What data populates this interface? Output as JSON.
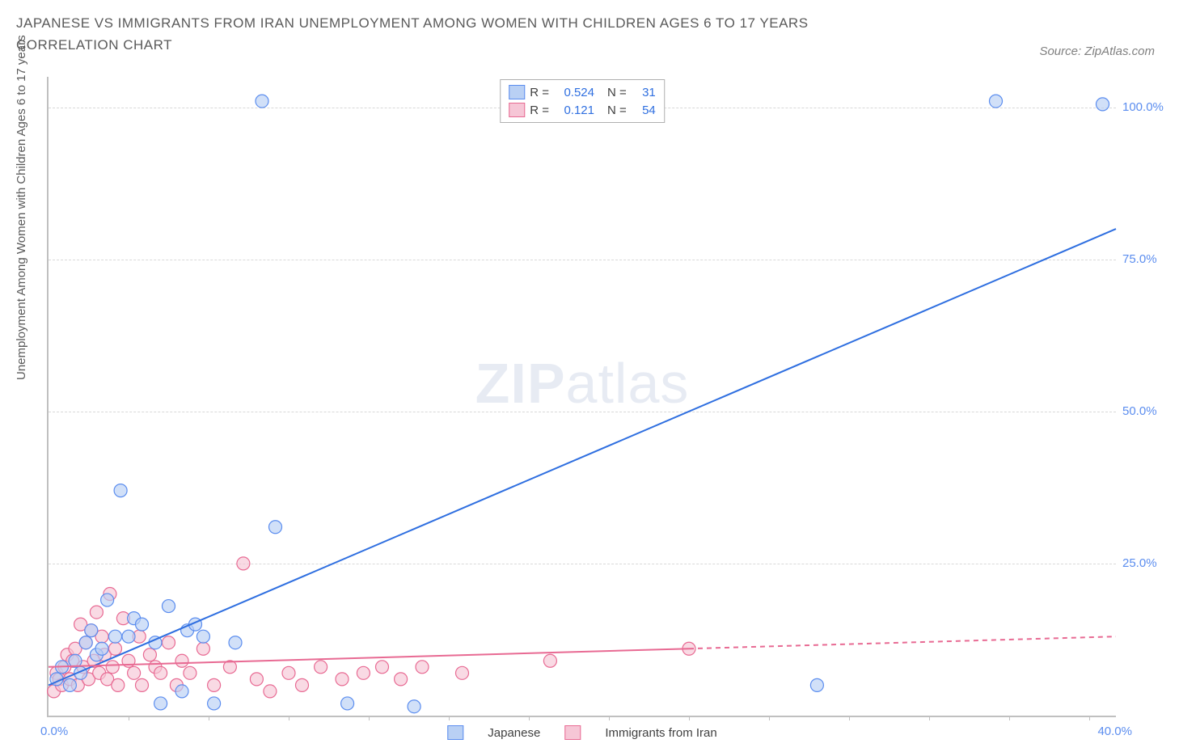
{
  "title": "JAPANESE VS IMMIGRANTS FROM IRAN UNEMPLOYMENT AMONG WOMEN WITH CHILDREN AGES 6 TO 17 YEARS CORRELATION CHART",
  "source": "Source: ZipAtlas.com",
  "ylabel": "Unemployment Among Women with Children Ages 6 to 17 years",
  "watermark_a": "ZIP",
  "watermark_b": "atlas",
  "chart": {
    "type": "scatter-with-regression",
    "xlim": [
      0,
      40
    ],
    "ylim": [
      0,
      105
    ],
    "x_tick_positions": [
      3,
      6,
      9,
      12,
      15,
      18,
      21,
      24,
      27,
      30,
      33,
      36,
      39
    ],
    "x_label_min": "0.0%",
    "x_label_max": "40.0%",
    "y_gridlines": [
      25,
      50,
      75,
      100
    ],
    "y_labels": [
      "25.0%",
      "50.0%",
      "75.0%",
      "100.0%"
    ],
    "grid_color": "#d8d8d8",
    "axis_color": "#c0c0c0",
    "ytick_color": "#5b8def",
    "marker_radius": 8,
    "marker_stroke_width": 1.2,
    "line_width": 2,
    "series": [
      {
        "name": "Japanese",
        "color_fill": "#b9d0f4",
        "color_stroke": "#5b8def",
        "line_color": "#2f6fe0",
        "R": "0.524",
        "N": "31",
        "regression": {
          "x1": 0,
          "y1": 5,
          "x2": 40,
          "y2": 80,
          "dashed_from_x": null
        },
        "points": [
          [
            0.3,
            6
          ],
          [
            0.5,
            8
          ],
          [
            0.8,
            5
          ],
          [
            1.0,
            9
          ],
          [
            1.2,
            7
          ],
          [
            1.4,
            12
          ],
          [
            1.6,
            14
          ],
          [
            1.8,
            10
          ],
          [
            2.0,
            11
          ],
          [
            2.2,
            19
          ],
          [
            2.5,
            13
          ],
          [
            2.7,
            37
          ],
          [
            3.0,
            13
          ],
          [
            3.2,
            16
          ],
          [
            3.5,
            15
          ],
          [
            4.0,
            12
          ],
          [
            4.2,
            2
          ],
          [
            4.5,
            18
          ],
          [
            5.0,
            4
          ],
          [
            5.2,
            14
          ],
          [
            5.5,
            15
          ],
          [
            5.8,
            13
          ],
          [
            6.2,
            2
          ],
          [
            7.0,
            12
          ],
          [
            8.0,
            101
          ],
          [
            8.5,
            31
          ],
          [
            11.2,
            2
          ],
          [
            13.7,
            1.5
          ],
          [
            28.8,
            5
          ],
          [
            35.5,
            101
          ],
          [
            39.5,
            100.5
          ]
        ]
      },
      {
        "name": "Immigrants from Iran",
        "color_fill": "#f6c6d6",
        "color_stroke": "#e86a93",
        "line_color": "#e86a93",
        "R": "0.121",
        "N": "54",
        "regression": {
          "x1": 0,
          "y1": 8,
          "x2": 40,
          "y2": 13,
          "dashed_from_x": 24
        },
        "points": [
          [
            0.2,
            4
          ],
          [
            0.3,
            7
          ],
          [
            0.4,
            6
          ],
          [
            0.5,
            5
          ],
          [
            0.6,
            8
          ],
          [
            0.7,
            10
          ],
          [
            0.8,
            6
          ],
          [
            0.9,
            9
          ],
          [
            1.0,
            11
          ],
          [
            1.1,
            5
          ],
          [
            1.2,
            15
          ],
          [
            1.3,
            8
          ],
          [
            1.4,
            12
          ],
          [
            1.5,
            6
          ],
          [
            1.6,
            14
          ],
          [
            1.7,
            9
          ],
          [
            1.8,
            17
          ],
          [
            1.9,
            7
          ],
          [
            2.0,
            13
          ],
          [
            2.1,
            10
          ],
          [
            2.2,
            6
          ],
          [
            2.3,
            20
          ],
          [
            2.4,
            8
          ],
          [
            2.5,
            11
          ],
          [
            2.6,
            5
          ],
          [
            2.8,
            16
          ],
          [
            3.0,
            9
          ],
          [
            3.2,
            7
          ],
          [
            3.4,
            13
          ],
          [
            3.5,
            5
          ],
          [
            3.8,
            10
          ],
          [
            4.0,
            8
          ],
          [
            4.2,
            7
          ],
          [
            4.5,
            12
          ],
          [
            4.8,
            5
          ],
          [
            5.0,
            9
          ],
          [
            5.3,
            7
          ],
          [
            5.8,
            11
          ],
          [
            6.2,
            5
          ],
          [
            6.8,
            8
          ],
          [
            7.3,
            25
          ],
          [
            7.8,
            6
          ],
          [
            8.3,
            4
          ],
          [
            9.0,
            7
          ],
          [
            9.5,
            5
          ],
          [
            10.2,
            8
          ],
          [
            11.0,
            6
          ],
          [
            11.8,
            7
          ],
          [
            12.5,
            8
          ],
          [
            13.2,
            6
          ],
          [
            14.0,
            8
          ],
          [
            15.5,
            7
          ],
          [
            18.8,
            9
          ],
          [
            24.0,
            11
          ]
        ]
      }
    ]
  },
  "legend_top": {
    "r_label": "R =",
    "n_label": "N ="
  },
  "legend_bottom": {
    "s1": "Japanese",
    "s2": "Immigrants from Iran"
  }
}
